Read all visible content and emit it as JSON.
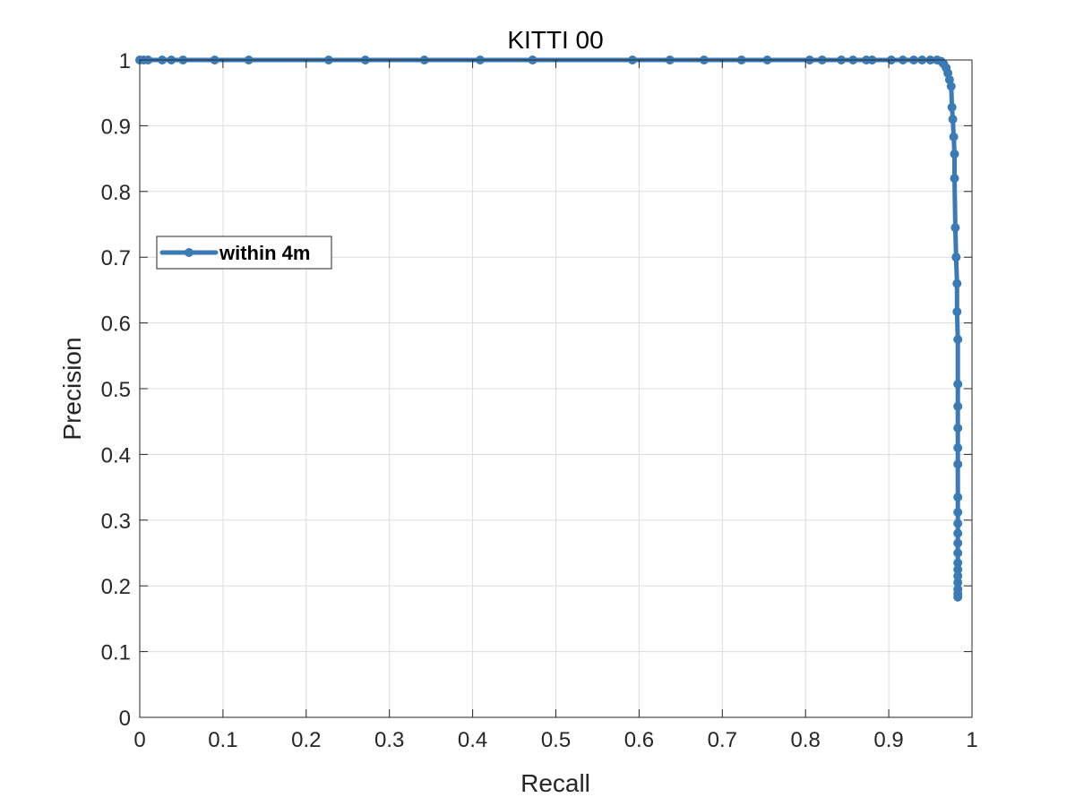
{
  "chart_data": {
    "type": "line",
    "title": "KITTI 00",
    "xlabel": "Recall",
    "ylabel": "Precision",
    "xlim": [
      0,
      1
    ],
    "ylim": [
      0,
      1
    ],
    "xticks": [
      "0",
      "0.1",
      "0.2",
      "0.3",
      "0.4",
      "0.5",
      "0.6",
      "0.7",
      "0.8",
      "0.9",
      "1"
    ],
    "yticks": [
      "0",
      "0.1",
      "0.2",
      "0.3",
      "0.4",
      "0.5",
      "0.6",
      "0.7",
      "0.8",
      "0.9",
      "1"
    ],
    "grid": true,
    "legend_position": "left, middle-upper",
    "series": [
      {
        "name": "within 4m",
        "color": "#3a7ab6",
        "x": [
          0.0,
          0.005,
          0.01,
          0.027,
          0.038,
          0.052,
          0.09,
          0.131,
          0.227,
          0.271,
          0.342,
          0.409,
          0.472,
          0.592,
          0.637,
          0.678,
          0.723,
          0.754,
          0.805,
          0.82,
          0.843,
          0.857,
          0.873,
          0.88,
          0.903,
          0.917,
          0.93,
          0.94,
          0.95,
          0.958,
          0.963,
          0.966,
          0.969,
          0.971,
          0.973,
          0.975,
          0.976,
          0.977,
          0.978,
          0.979,
          0.979,
          0.98,
          0.981,
          0.982,
          0.982,
          0.983,
          0.983,
          0.983,
          0.983,
          0.983,
          0.983,
          0.983,
          0.983,
          0.983,
          0.983,
          0.983,
          0.983,
          0.983,
          0.983,
          0.983,
          0.983,
          0.983,
          0.983,
          0.983
        ],
        "y": [
          1.0,
          1.0,
          1.0,
          1.0,
          1.0,
          1.0,
          1.0,
          1.0,
          1.0,
          1.0,
          1.0,
          1.0,
          1.0,
          1.0,
          1.0,
          1.0,
          1.0,
          1.0,
          1.0,
          1.0,
          1.0,
          1.0,
          1.0,
          1.0,
          1.0,
          1.0,
          1.0,
          1.0,
          1.0,
          1.0,
          0.998,
          0.994,
          0.988,
          0.98,
          0.97,
          0.96,
          0.928,
          0.91,
          0.883,
          0.857,
          0.82,
          0.745,
          0.7,
          0.66,
          0.617,
          0.575,
          0.507,
          0.473,
          0.44,
          0.41,
          0.385,
          0.335,
          0.312,
          0.295,
          0.28,
          0.265,
          0.25,
          0.235,
          0.225,
          0.215,
          0.205,
          0.195,
          0.188,
          0.183
        ]
      }
    ]
  }
}
